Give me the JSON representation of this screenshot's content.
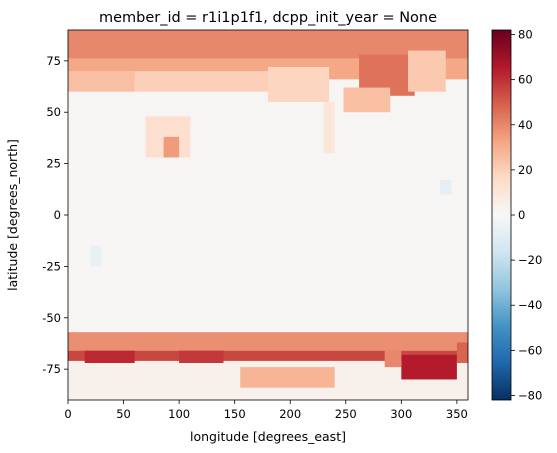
{
  "chart_data": {
    "type": "heatmap",
    "title": "member_id = r1i1p1f1, dcpp_init_year = None",
    "xlabel": "longitude [degrees_east]",
    "ylabel": "latitude [degrees_north]",
    "xlim": [
      0,
      360
    ],
    "ylim": [
      -90,
      90
    ],
    "xticks": [
      0,
      50,
      100,
      150,
      200,
      250,
      300,
      350
    ],
    "yticks": [
      -75,
      -50,
      -25,
      0,
      25,
      50,
      75
    ],
    "colorbar": {
      "cmap": "RdBu_r",
      "vmin": -82,
      "vmax": 82,
      "ticks": [
        -80,
        -60,
        -40,
        -20,
        0,
        20,
        40,
        60,
        80
      ],
      "colors": [
        "#053061",
        "#2166ac",
        "#4393c3",
        "#92c5de",
        "#d1e5f0",
        "#f7f7f7",
        "#fddbc7",
        "#f4a582",
        "#d6604d",
        "#b2182b",
        "#67001f"
      ]
    },
    "background_value": 1,
    "regions": [
      {
        "lon": [
          0,
          360
        ],
        "lat": [
          76,
          90
        ],
        "value": 40
      },
      {
        "lon": [
          0,
          360
        ],
        "lat": [
          66,
          76
        ],
        "value": 32
      },
      {
        "lon": [
          0,
          60
        ],
        "lat": [
          60,
          70
        ],
        "value": 25
      },
      {
        "lon": [
          60,
          180
        ],
        "lat": [
          60,
          70
        ],
        "value": 20
      },
      {
        "lon": [
          180,
          235
        ],
        "lat": [
          55,
          72
        ],
        "value": 18
      },
      {
        "lon": [
          262,
          312
        ],
        "lat": [
          58,
          78
        ],
        "value": 45
      },
      {
        "lon": [
          248,
          290
        ],
        "lat": [
          50,
          62
        ],
        "value": 25
      },
      {
        "lon": [
          306,
          340
        ],
        "lat": [
          60,
          80
        ],
        "value": 22
      },
      {
        "lon": [
          70,
          110
        ],
        "lat": [
          28,
          48
        ],
        "value": 14
      },
      {
        "lon": [
          86,
          100
        ],
        "lat": [
          28,
          38
        ],
        "value": 35
      },
      {
        "lon": [
          230,
          240
        ],
        "lat": [
          30,
          55
        ],
        "value": 10
      },
      {
        "lon": [
          0,
          360
        ],
        "lat": [
          -66,
          -57
        ],
        "value": 38
      },
      {
        "lon": [
          0,
          360
        ],
        "lat": [
          -71,
          -66
        ],
        "value": 55
      },
      {
        "lon": [
          0,
          360
        ],
        "lat": [
          -90,
          -71
        ],
        "value": 4
      },
      {
        "lon": [
          155,
          240
        ],
        "lat": [
          -84,
          -74
        ],
        "value": 28
      },
      {
        "lon": [
          300,
          350
        ],
        "lat": [
          -80,
          -68
        ],
        "value": 65
      },
      {
        "lon": [
          285,
          300
        ],
        "lat": [
          -74,
          -66
        ],
        "value": 40
      },
      {
        "lon": [
          350,
          360
        ],
        "lat": [
          -72,
          -62
        ],
        "value": 48
      },
      {
        "lon": [
          15,
          60
        ],
        "lat": [
          -72,
          -66
        ],
        "value": 62
      },
      {
        "lon": [
          100,
          140
        ],
        "lat": [
          -72,
          -66
        ],
        "value": 58
      },
      {
        "lon": [
          20,
          30
        ],
        "lat": [
          -25,
          -15
        ],
        "value": -6
      },
      {
        "lon": [
          335,
          345
        ],
        "lat": [
          10,
          17
        ],
        "value": -8
      }
    ]
  }
}
